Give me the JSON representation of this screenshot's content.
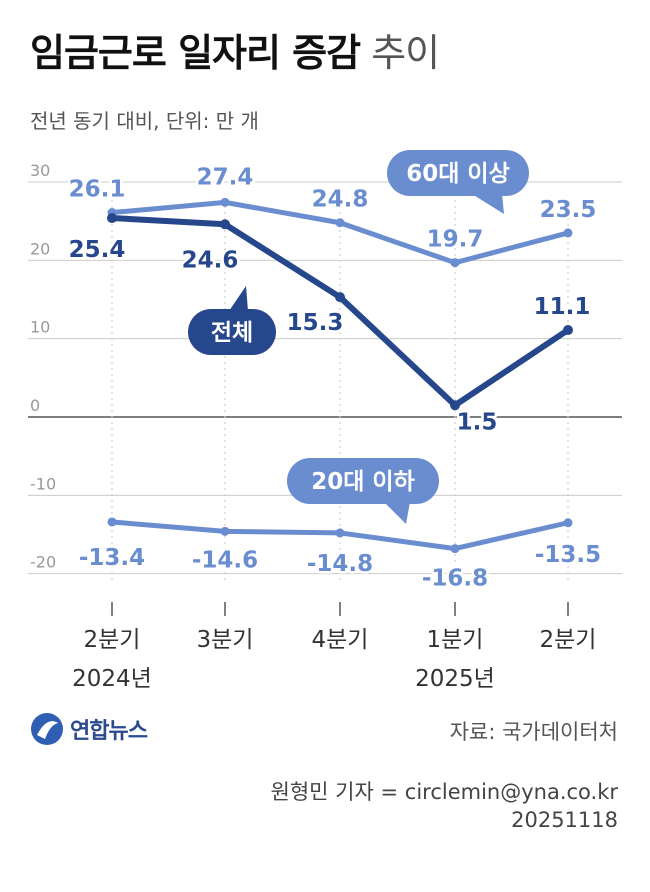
{
  "header": {
    "title_bold": "임금근로 일자리 증감",
    "title_light": "추이",
    "subtitle": "전년 동기 대비, 단위: 만 개"
  },
  "footer": {
    "logo_text": "연합뉴스",
    "source": "자료: 국가데이터처",
    "reporter": "원형민 기자 = circlemin@yna.co.kr",
    "date": "20251118"
  },
  "colors": {
    "total": "#27478c",
    "age60": "#6a8dd0",
    "age20": "#6a8dd0",
    "grid": "#cccccc",
    "axis_text": "#999999"
  },
  "chart_data": {
    "type": "line",
    "title": "임금근로 일자리 증감 추이",
    "ylabel": "전년 동기 대비, 단위: 만 개",
    "ylim": [
      -20,
      30
    ],
    "yticks": [
      30,
      20,
      10,
      0,
      -10,
      -20
    ],
    "ytick_labels": [
      "30",
      "20",
      "10",
      "0",
      "-10",
      "-20"
    ],
    "categories": [
      "2분기",
      "3분기",
      "4분기",
      "1분기",
      "2분기"
    ],
    "year_labels": [
      "2024년",
      "",
      "",
      "2025년",
      ""
    ],
    "series": [
      {
        "name": "60대 이상",
        "values": [
          26.1,
          27.4,
          24.8,
          19.7,
          23.5
        ],
        "labels": [
          "26.1",
          "27.4",
          "24.8",
          "19.7",
          "23.5"
        ]
      },
      {
        "name": "전체",
        "values": [
          25.4,
          24.6,
          15.3,
          1.5,
          11.1
        ],
        "labels": [
          "25.4",
          "24.6",
          "15.3",
          "1.5",
          "11.1"
        ]
      },
      {
        "name": "20대 이하",
        "values": [
          -13.4,
          -14.6,
          -14.8,
          -16.8,
          -13.5
        ],
        "labels": [
          "-13.4",
          "-14.6",
          "-14.8",
          "-16.8",
          "-13.5"
        ]
      }
    ]
  }
}
